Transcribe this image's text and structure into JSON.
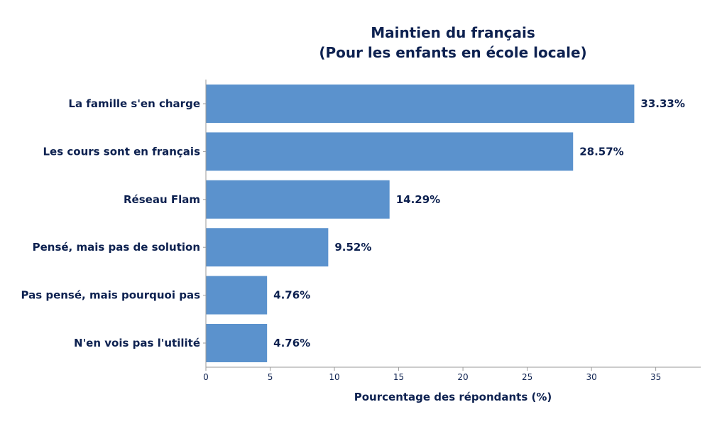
{
  "chart_data": {
    "type": "bar",
    "orientation": "horizontal",
    "title_line1": "Maintien du français",
    "title_line2": "(Pour les enfants en école locale)",
    "xlabel": "Pourcentage des répondants (%)",
    "ylabel": "",
    "xlim": [
      0,
      38.5
    ],
    "xticks": [
      0,
      5,
      10,
      15,
      20,
      25,
      30,
      35
    ],
    "grid": false,
    "categories": [
      "La famille s'en charge",
      "Les cours sont en français",
      "Réseau Flam",
      "Pensé, mais pas de solution",
      "Pas pensé, mais pourquoi pas",
      "N'en vois pas l'utilité"
    ],
    "values": [
      33.33,
      28.57,
      14.29,
      9.52,
      4.76,
      4.76
    ],
    "value_labels": [
      "33.33%",
      "28.57%",
      "14.29%",
      "9.52%",
      "4.76%",
      "4.76%"
    ],
    "bar_color": "#5b92cd",
    "text_color": "#0d2150"
  }
}
